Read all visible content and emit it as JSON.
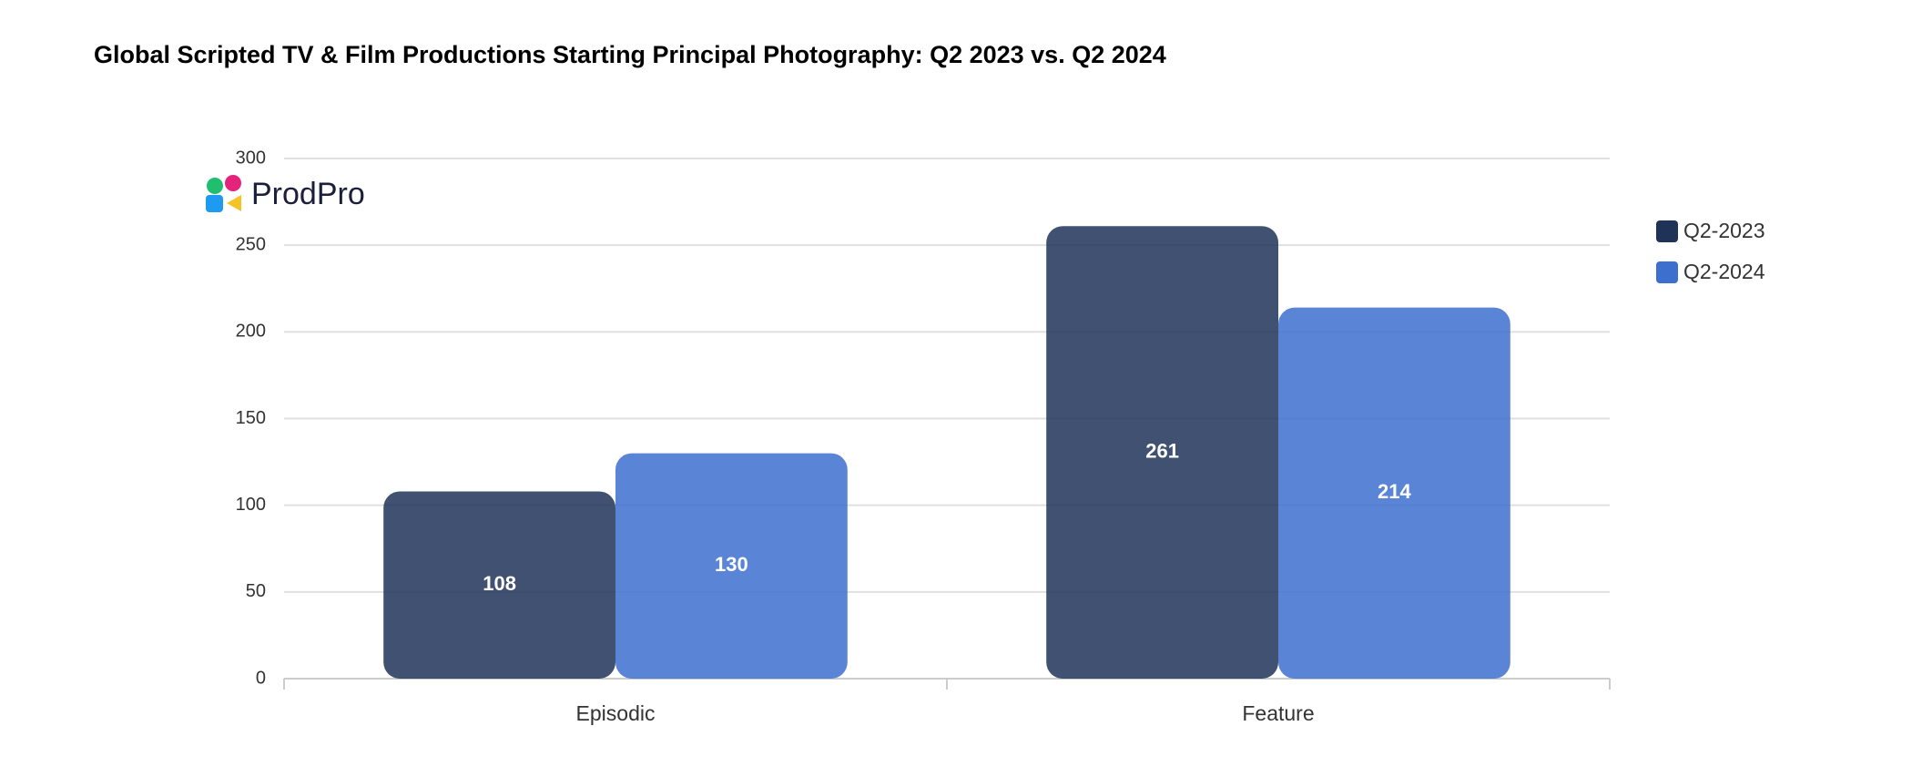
{
  "chart_data": {
    "type": "grouped_bar",
    "title": "Global Scripted TV & Film Productions Starting Principal Photography: Q2 2023 vs. Q2 2024",
    "logo_text": "ProdPro",
    "categories": [
      "Episodic",
      "Feature"
    ],
    "series": [
      {
        "name": "Q2-2023",
        "color": "#1f3358",
        "values": [
          108,
          261
        ]
      },
      {
        "name": "Q2-2024",
        "color": "#3d6fcf",
        "values": [
          130,
          214
        ]
      }
    ],
    "ylim": [
      0,
      300
    ],
    "yticks": [
      0,
      50,
      100,
      150,
      200,
      250,
      300
    ],
    "grid": true,
    "legend": "right"
  }
}
